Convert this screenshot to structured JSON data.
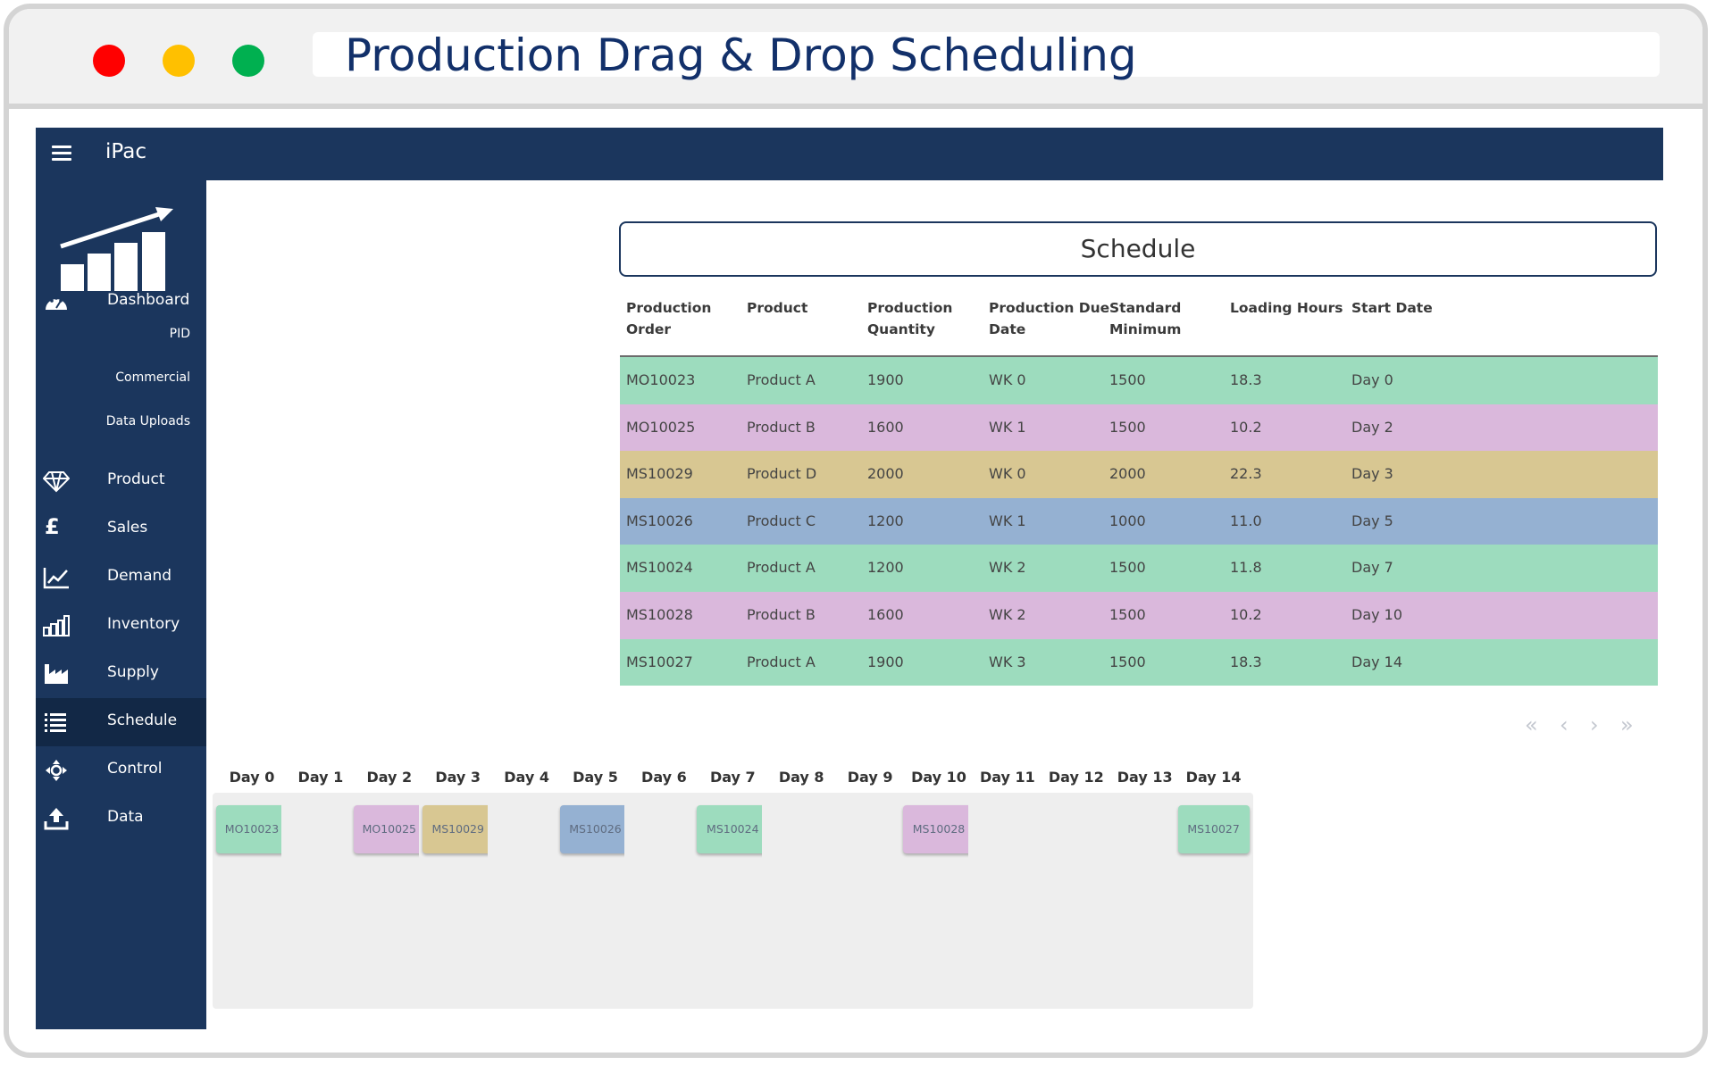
{
  "window": {
    "title": "Production Drag & Drop Scheduling",
    "controls": [
      "close",
      "minimize",
      "maximize"
    ]
  },
  "app": {
    "brand": "iPac",
    "menu_icon": "hamburger-icon",
    "logo_icon": "growth-chart-icon"
  },
  "sidebar": {
    "items": [
      {
        "label": "Dashboard",
        "icon": "dashboard-gauge-icon"
      },
      {
        "label": "PID"
      },
      {
        "label": "Commercial"
      },
      {
        "label": "Data Uploads"
      },
      {
        "label": "Product",
        "icon": "diamond-icon"
      },
      {
        "label": "Sales",
        "icon": "pound-sign-icon"
      },
      {
        "label": "Demand",
        "icon": "line-chart-icon"
      },
      {
        "label": "Inventory",
        "icon": "inventory-bars-icon"
      },
      {
        "label": "Supply",
        "icon": "factory-icon"
      },
      {
        "label": "Schedule",
        "icon": "list-icon",
        "active": true
      },
      {
        "label": "Control",
        "icon": "control-arrows-icon"
      },
      {
        "label": "Data",
        "icon": "upload-icon"
      }
    ]
  },
  "schedule": {
    "title": "Schedule",
    "columns": [
      [
        "Production",
        "Order"
      ],
      [
        "Product"
      ],
      [
        "Production",
        "Quantity"
      ],
      [
        "Production Due",
        "Date"
      ],
      [
        "Standard",
        "Minimum"
      ],
      [
        "Loading Hours"
      ],
      [
        "Start Date"
      ]
    ],
    "rows": [
      {
        "cells": [
          "MO10023",
          "Product A",
          "1900",
          "WK 0",
          "1500",
          "18.3",
          "Day 0"
        ],
        "color": "#9ddcbe"
      },
      {
        "cells": [
          "MO10025",
          "Product B",
          "1600",
          "WK 1",
          "1500",
          "10.2",
          "Day 2"
        ],
        "color": "#dab8dc"
      },
      {
        "cells": [
          "MS10029",
          "Product D",
          "2000",
          "WK 0",
          "2000",
          "22.3",
          "Day 3"
        ],
        "color": "#d8c792"
      },
      {
        "cells": [
          "MS10026",
          "Product C",
          "1200",
          "WK 1",
          "1000",
          "11.0",
          "Day 5"
        ],
        "color": "#95b1d2"
      },
      {
        "cells": [
          "MS10024",
          "Product A",
          "1200",
          "WK 2",
          "1500",
          "11.8",
          "Day 7"
        ],
        "color": "#9ddcbe"
      },
      {
        "cells": [
          "MS10028",
          "Product B",
          "1600",
          "WK 2",
          "1500",
          "10.2",
          "Day 10"
        ],
        "color": "#dab8dc"
      },
      {
        "cells": [
          "MS10027",
          "Product A",
          "1900",
          "WK 3",
          "1500",
          "18.3",
          "Day 14"
        ],
        "color": "#9ddcbe"
      }
    ],
    "pager": {
      "first": "«",
      "prev": "‹",
      "next": "›",
      "last": "»"
    }
  },
  "board": {
    "days": [
      "Day 0",
      "Day 1",
      "Day 2",
      "Day 3",
      "Day 4",
      "Day 5",
      "Day 6",
      "Day 7",
      "Day 8",
      "Day 9",
      "Day 10",
      "Day 11",
      "Day 12",
      "Day 13",
      "Day 14"
    ],
    "chips": [
      {
        "day": 0,
        "label": "MO10023",
        "color": "#9ddcbe"
      },
      {
        "day": 2,
        "label": "MO10025",
        "color": "#dab8dc"
      },
      {
        "day": 3,
        "label": "MS10029",
        "color": "#d8c792"
      },
      {
        "day": 5,
        "label": "MS10026",
        "color": "#95b1d2"
      },
      {
        "day": 7,
        "label": "MS10024",
        "color": "#9ddcbe"
      },
      {
        "day": 10,
        "label": "MS10028",
        "color": "#dab8dc"
      },
      {
        "day": 14,
        "label": "MS10027",
        "color": "#9ddcbe"
      }
    ]
  }
}
